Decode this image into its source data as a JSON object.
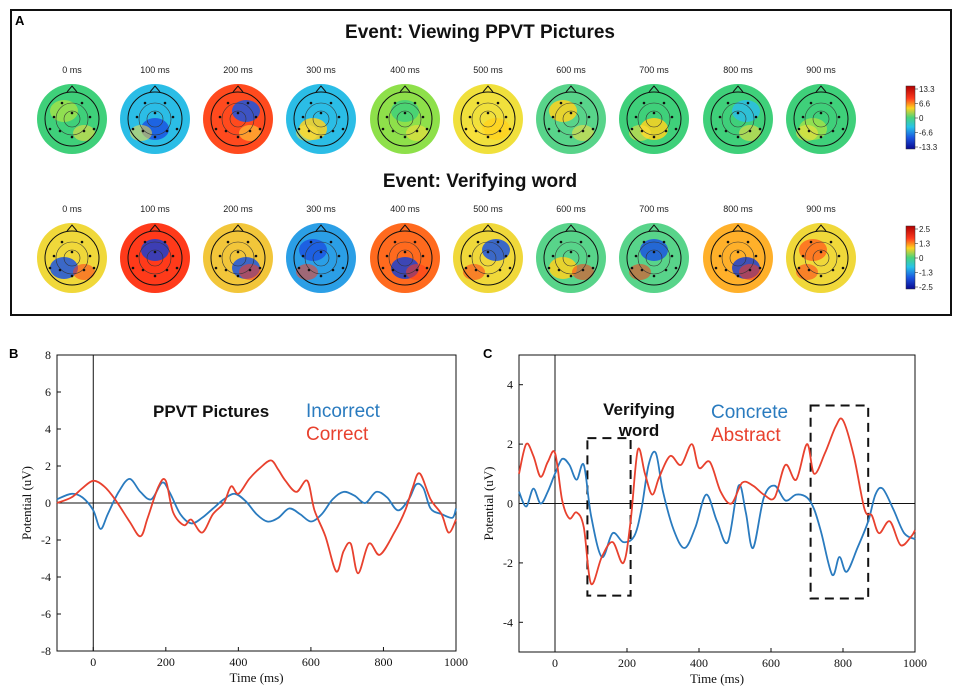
{
  "panels": {
    "a": {
      "letter": "A",
      "rows": [
        {
          "title": "Event: Viewing PPVT Pictures",
          "times": [
            "0 ms",
            "100 ms",
            "200 ms",
            "300 ms",
            "400 ms",
            "500 ms",
            "600 ms",
            "700 ms",
            "800 ms",
            "900 ms"
          ],
          "colorbar": [
            "13.3",
            "6.6",
            "0",
            "-6.6",
            "-13.3"
          ]
        },
        {
          "title": "Event: Verifying word",
          "times": [
            "0 ms",
            "100 ms",
            "200 ms",
            "300 ms",
            "400 ms",
            "500 ms",
            "600 ms",
            "700 ms",
            "800 ms",
            "900 ms"
          ],
          "colorbar": [
            "2.5",
            "1.3",
            "0",
            "-1.3",
            "-2.5"
          ]
        }
      ]
    },
    "b": {
      "letter": "B"
    },
    "c": {
      "letter": "C"
    }
  },
  "colors": {
    "blue": "#2a7bbf",
    "red": "#e8412e",
    "frame": "#222222"
  },
  "chart_data": [
    {
      "type": "line",
      "panel": "B",
      "xlabel": "Time (ms)",
      "ylabel": "Potential (uV)",
      "xlim": [
        -100,
        1000
      ],
      "ylim": [
        -8,
        8
      ],
      "xticks": [
        0,
        200,
        400,
        600,
        800,
        1000
      ],
      "yticks": [
        -8,
        -6,
        -4,
        -2,
        0,
        2,
        4,
        6,
        8
      ],
      "legend_title": "PPVT Pictures",
      "series": [
        {
          "name": "Incorrect",
          "color": "#2a7bbf",
          "x": [
            -100,
            -60,
            -30,
            0,
            20,
            40,
            70,
            100,
            130,
            160,
            190,
            210,
            240,
            270,
            300,
            330,
            360,
            390,
            420,
            450,
            480,
            510,
            540,
            570,
            600,
            630,
            660,
            690,
            720,
            750,
            780,
            810,
            840,
            870,
            890,
            910,
            930,
            960,
            990,
            1000
          ],
          "y": [
            0.2,
            0.5,
            0.3,
            -0.4,
            -1.4,
            -0.6,
            0.6,
            1.3,
            0.6,
            0.2,
            1.1,
            0.6,
            -0.6,
            -1.1,
            -0.8,
            -0.3,
            0.2,
            0.5,
            0.1,
            -0.6,
            -1.0,
            -0.8,
            -0.3,
            -0.6,
            -1.0,
            -0.6,
            0.2,
            0.6,
            0.4,
            0.0,
            0.6,
            0.3,
            -0.4,
            0.2,
            1.0,
            0.8,
            -0.3,
            -0.6,
            -0.8,
            -0.3
          ]
        },
        {
          "name": "Correct",
          "color": "#e8412e",
          "x": [
            -100,
            -60,
            -30,
            0,
            30,
            60,
            100,
            130,
            150,
            180,
            200,
            220,
            250,
            270,
            300,
            330,
            360,
            380,
            400,
            430,
            460,
            490,
            510,
            530,
            560,
            590,
            610,
            640,
            670,
            690,
            710,
            730,
            760,
            790,
            830,
            860,
            880,
            900,
            930,
            960,
            980,
            1000
          ],
          "y": [
            0.0,
            0.3,
            0.8,
            1.2,
            0.9,
            0.2,
            -1.0,
            -1.8,
            -0.8,
            0.9,
            1.2,
            -0.5,
            -1.2,
            -0.9,
            -1.6,
            -0.6,
            0.0,
            0.9,
            0.5,
            1.3,
            1.9,
            2.3,
            1.8,
            1.2,
            0.6,
            1.2,
            -0.4,
            -1.8,
            -3.7,
            -2.6,
            -2.2,
            -3.8,
            -2.2,
            -2.8,
            -1.6,
            -0.4,
            0.8,
            1.6,
            0.2,
            -0.6,
            -1.6,
            -0.9
          ]
        }
      ]
    },
    {
      "type": "line",
      "panel": "C",
      "xlabel": "Time (ms)",
      "ylabel": "Potential (uV)",
      "xlim": [
        -100,
        1000
      ],
      "ylim": [
        -5,
        5
      ],
      "xticks": [
        0,
        200,
        400,
        600,
        800,
        1000
      ],
      "yticks": [
        -4,
        -2,
        0,
        2,
        4
      ],
      "legend_title": "Verifying word",
      "series": [
        {
          "name": "Concrete",
          "color": "#2a7bbf",
          "x": [
            -100,
            -80,
            -60,
            -40,
            -20,
            0,
            20,
            40,
            60,
            80,
            100,
            130,
            160,
            190,
            220,
            240,
            260,
            280,
            300,
            330,
            360,
            390,
            420,
            450,
            480,
            510,
            530,
            550,
            580,
            610,
            640,
            670,
            700,
            720,
            740,
            770,
            790,
            810,
            840,
            870,
            890,
            910,
            940,
            970,
            1000
          ],
          "y": [
            0.4,
            -0.1,
            0.5,
            0.0,
            0.4,
            1.0,
            1.5,
            1.3,
            0.8,
            1.3,
            -0.4,
            -1.8,
            -1.0,
            -1.3,
            -1.1,
            -0.2,
            1.3,
            1.7,
            0.4,
            -0.9,
            -1.5,
            -0.8,
            0.3,
            -0.6,
            -1.3,
            0.6,
            -0.3,
            -1.5,
            0.2,
            0.6,
            0.1,
            0.3,
            0.2,
            -0.2,
            -1.0,
            -2.4,
            -1.8,
            -2.3,
            -1.5,
            -0.6,
            0.3,
            0.5,
            -0.2,
            -1.0,
            -1.2
          ]
        },
        {
          "name": "Abstract",
          "color": "#e8412e",
          "x": [
            -100,
            -80,
            -60,
            -40,
            -20,
            0,
            20,
            40,
            60,
            80,
            100,
            130,
            160,
            190,
            210,
            230,
            250,
            270,
            290,
            320,
            350,
            380,
            400,
            430,
            460,
            490,
            520,
            550,
            580,
            610,
            640,
            670,
            700,
            720,
            750,
            780,
            800,
            830,
            860,
            880,
            900,
            930,
            960,
            990,
            1000
          ],
          "y": [
            1.0,
            2.0,
            1.6,
            0.9,
            1.4,
            1.7,
            0.1,
            -0.5,
            -0.3,
            -0.8,
            -2.7,
            -1.8,
            -1.3,
            -2.0,
            -0.6,
            1.8,
            1.0,
            0.3,
            0.9,
            1.6,
            1.3,
            2.0,
            1.2,
            1.4,
            0.4,
            0.0,
            0.7,
            0.6,
            0.3,
            0.2,
            1.3,
            0.8,
            2.0,
            1.0,
            1.7,
            2.6,
            2.8,
            1.6,
            -0.2,
            -0.4,
            -1.0,
            -0.6,
            -1.4,
            -1.1,
            -0.9
          ]
        }
      ],
      "annotations": [
        {
          "type": "dashed-box",
          "x": [
            90,
            210
          ],
          "y": [
            -3.1,
            2.2
          ]
        },
        {
          "type": "dashed-box",
          "x": [
            710,
            870
          ],
          "y": [
            -3.2,
            3.3
          ]
        }
      ]
    }
  ]
}
